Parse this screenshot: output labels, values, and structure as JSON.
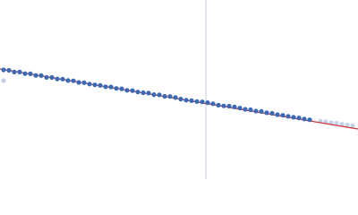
{
  "chart_data": {
    "type": "scatter",
    "xlim": [
      0,
      400
    ],
    "ylim": [
      0,
      200
    ],
    "vline": 230,
    "vline_color": "#c8d0e0",
    "series": [
      {
        "type": "scatter",
        "color": "#3a6ab4",
        "opacity": 1,
        "x": [
          4,
          10,
          16,
          22,
          28,
          34,
          40,
          46,
          52,
          58,
          64,
          70,
          76,
          82,
          88,
          94,
          100,
          106,
          112,
          118,
          124,
          130,
          136,
          142,
          148,
          154,
          160,
          166,
          172,
          178,
          184,
          190,
          196,
          202,
          208,
          214,
          220,
          226,
          232,
          238,
          244,
          250,
          256,
          262,
          268,
          274,
          280,
          286,
          292,
          298,
          304,
          310,
          316,
          322,
          328,
          334,
          340,
          346
        ],
        "values": [
          122.0,
          121.5,
          119.6,
          119.6,
          117.8,
          117.6,
          115.8,
          115.6,
          113.6,
          113.5,
          111.9,
          111.7,
          110.1,
          109.8,
          108.0,
          107.7,
          106.2,
          105.3,
          104.7,
          103.2,
          102.9,
          101.3,
          100.9,
          99.2,
          98.9,
          97.3,
          96.5,
          96.1,
          94.4,
          94.1,
          92.5,
          92.3,
          91.1,
          89.4,
          88.2,
          87.6,
          86.7,
          86.3,
          85.4,
          84.2,
          82.6,
          81.8,
          81.5,
          80.6,
          79.4,
          78.0,
          77.5,
          76.0,
          75.6,
          74.1,
          73.5,
          72.0,
          71.3,
          70.2,
          69.1,
          68.4,
          67.2,
          66.3
        ]
      },
      {
        "type": "scatter",
        "color": "#a9bfdc",
        "opacity": 0.7,
        "x": [
          4,
          358,
          364,
          370,
          376,
          382,
          388,
          394
        ],
        "values": [
          110,
          64.8,
          64.2,
          63.0,
          62.5,
          61.4,
          60.7,
          59.8
        ]
      },
      {
        "type": "line",
        "color": "#d0343c",
        "opacity": 1,
        "x": [
          0,
          400
        ],
        "values": [
          123,
          56
        ]
      }
    ]
  }
}
